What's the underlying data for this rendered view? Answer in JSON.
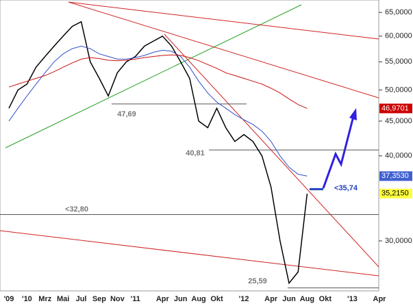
{
  "chart_data": {
    "type": "line",
    "log_scale": true,
    "categories": [
      "'09",
      null,
      "'10",
      null,
      "Mrz",
      null,
      "Mai",
      null,
      "Jul",
      null,
      "Sep",
      null,
      "Nov",
      null,
      "'11",
      null,
      null,
      "Apr",
      null,
      "Jun",
      null,
      "Aug",
      null,
      "Okt",
      null,
      null,
      "'12",
      null,
      null,
      "Apr",
      null,
      "Jun",
      null,
      "Aug",
      null,
      "Okt",
      null,
      null,
      "'13",
      null,
      null,
      "Apr"
    ],
    "series": [
      {
        "color": "#000000",
        "values": [
          47,
          50,
          51,
          54,
          56,
          58,
          60,
          62,
          63,
          55,
          52,
          49,
          53,
          55,
          56,
          58,
          59,
          60,
          58,
          55,
          52,
          45,
          44,
          47,
          44,
          42,
          43,
          42,
          40,
          36,
          30,
          26,
          27,
          35.2,
          null,
          null,
          null,
          null,
          null,
          null,
          null,
          null
        ]
      },
      {
        "color": "#3050c8",
        "values": [
          45,
          47,
          49,
          51,
          53,
          55,
          56.5,
          57.5,
          58,
          57.5,
          56.5,
          56,
          55.5,
          55.5,
          55.8,
          56.2,
          56.8,
          57.2,
          57,
          56,
          54,
          51.5,
          49.5,
          48,
          47,
          46,
          45.2,
          44.5,
          43.5,
          42,
          40,
          38.5,
          37.6,
          37.353,
          null,
          null,
          null,
          null,
          null,
          null,
          null,
          null
        ]
      },
      {
        "color": "#cc1010",
        "values": [
          50.5,
          51,
          51.5,
          52,
          52.5,
          53.2,
          54,
          54.8,
          55.5,
          55.8,
          55.6,
          55.3,
          55.2,
          55.3,
          55.5,
          55.8,
          56,
          56.2,
          56.3,
          56.2,
          55.8,
          55.2,
          54.5,
          53.8,
          53,
          52.5,
          52,
          51.5,
          51,
          50.3,
          49.5,
          48.5,
          47.6,
          46.9701,
          null,
          null,
          null,
          null,
          null,
          null,
          null,
          null
        ]
      }
    ],
    "ylim": [
      25.33,
      67.8
    ],
    "yticks": [
      {
        "value": 30,
        "label": "30,0000"
      },
      {
        "value": 40,
        "label": "40,0000"
      },
      {
        "value": 45,
        "label": "45,0000"
      },
      {
        "value": 50,
        "label": "50,0000"
      },
      {
        "value": 55,
        "label": "55,0000"
      },
      {
        "value": 60,
        "label": "60,0000"
      },
      {
        "value": 65,
        "label": "65,0000"
      }
    ],
    "levels": [
      {
        "label": "47,69",
        "value": 47.69
      },
      {
        "label": "40,81",
        "value": 40.81
      },
      {
        "label": "<32,80",
        "value": 32.8
      },
      {
        "label": "25,59",
        "value": 25.59
      },
      {
        "label": "<35,74",
        "value": 35.74,
        "color": "#2040c0"
      }
    ],
    "tags": [
      {
        "label": "46,9701",
        "value": 46.9701,
        "color": "#cc0000"
      },
      {
        "label": "37,3530",
        "value": 37.353,
        "color": "#4060d0"
      },
      {
        "label": "35,2150",
        "value": 35.215,
        "color": "#ffff40"
      }
    ]
  }
}
